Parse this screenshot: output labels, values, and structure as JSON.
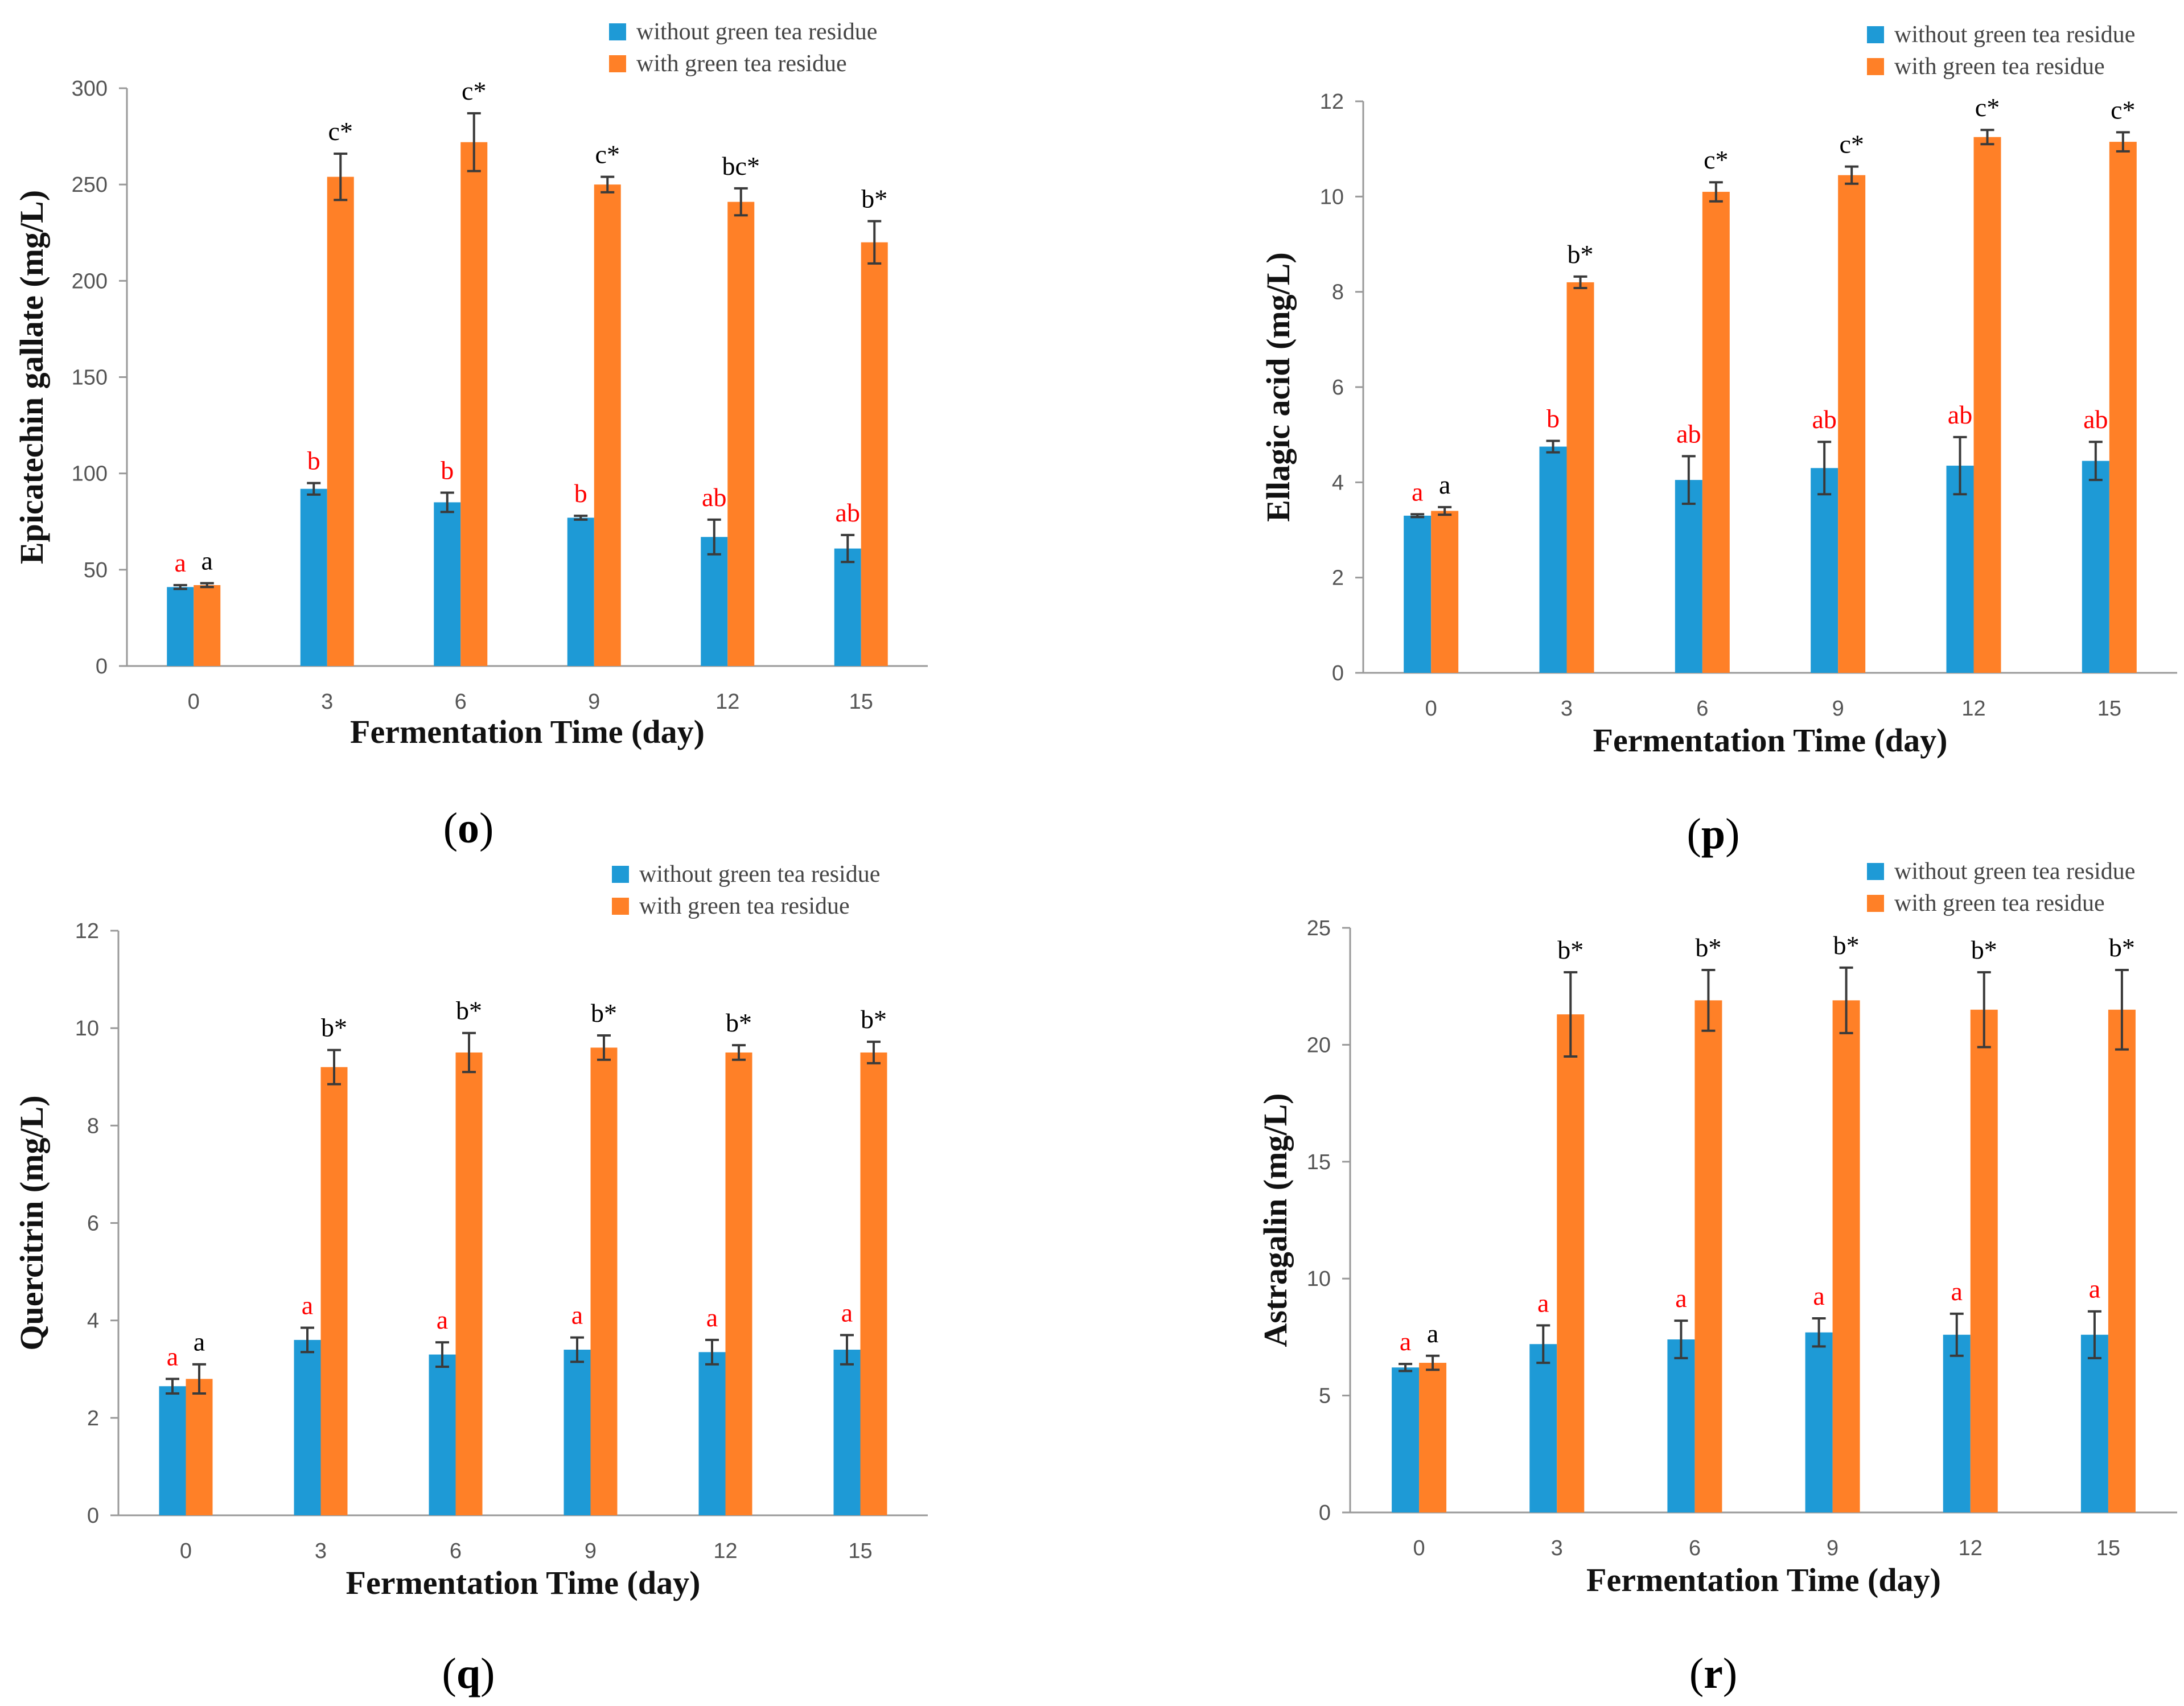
{
  "colors": {
    "without": "#1e9ad6",
    "with": "#ff8027",
    "sig_without": "#ff0000",
    "sig_with": "#000000",
    "axis": "#999999",
    "error_bar": "#3a3a3a"
  },
  "legend": {
    "without_label": "without green tea residue",
    "with_label": "with green tea residue"
  },
  "chart_data": [
    {
      "type": "bar",
      "panel_label": "o",
      "title": "",
      "xlabel": "Fermentation Time (day)",
      "ylabel": "Epicatechin gallate (mg/L)",
      "categories": [
        "0",
        "3",
        "6",
        "9",
        "12",
        "15"
      ],
      "ylim": [
        0,
        300
      ],
      "yticks": [
        0,
        50,
        100,
        150,
        200,
        250,
        300
      ],
      "ytick_labels": [
        "0",
        "50",
        "100",
        "150",
        "200",
        "250",
        "300"
      ],
      "series": [
        {
          "name": "without green tea residue",
          "values": [
            41,
            92,
            85,
            77,
            67,
            61
          ],
          "errors": [
            1,
            3,
            5,
            1,
            9,
            7
          ],
          "sig": [
            "a",
            "b",
            "b",
            "b",
            "ab",
            "ab"
          ]
        },
        {
          "name": "with green tea residue",
          "values": [
            42,
            254,
            272,
            250,
            241,
            220
          ],
          "errors": [
            1,
            12,
            15,
            4,
            7,
            11
          ],
          "sig": [
            "a",
            "c*",
            "c*",
            "c*",
            "bc*",
            "b*"
          ]
        }
      ]
    },
    {
      "type": "bar",
      "panel_label": "p",
      "title": "",
      "xlabel": "Fermentation Time (day)",
      "ylabel": "Ellagic acid (mg/L)",
      "categories": [
        "0",
        "3",
        "6",
        "9",
        "12",
        "15"
      ],
      "ylim": [
        0,
        12
      ],
      "yticks": [
        0,
        2,
        4,
        6,
        8,
        10,
        12
      ],
      "ytick_labels": [
        "0",
        "2",
        "4",
        "6",
        "8",
        "10",
        "12"
      ],
      "series": [
        {
          "name": "without green tea residue",
          "values": [
            3.3,
            4.75,
            4.05,
            4.3,
            4.35,
            4.45
          ],
          "errors": [
            0.03,
            0.12,
            0.5,
            0.55,
            0.6,
            0.4
          ],
          "sig": [
            "a",
            "b",
            "ab",
            "ab",
            "ab",
            "ab"
          ]
        },
        {
          "name": "with green tea residue",
          "values": [
            3.4,
            8.2,
            10.1,
            10.45,
            11.25,
            11.15
          ],
          "errors": [
            0.08,
            0.12,
            0.2,
            0.18,
            0.15,
            0.2
          ],
          "sig": [
            "a",
            "b*",
            "c*",
            "c*",
            "c*",
            "c*"
          ]
        }
      ]
    },
    {
      "type": "bar",
      "panel_label": "q",
      "title": "",
      "xlabel": "Fermentation Time (day)",
      "ylabel": "Quercitrin (mg/L)",
      "categories": [
        "0",
        "3",
        "6",
        "9",
        "12",
        "15"
      ],
      "ylim": [
        0,
        12
      ],
      "yticks": [
        0,
        2,
        4,
        6,
        8,
        10,
        12
      ],
      "ytick_labels": [
        "0",
        "2",
        "4",
        "6",
        "8",
        "10",
        "12"
      ],
      "series": [
        {
          "name": "without green tea residue",
          "values": [
            2.65,
            3.6,
            3.3,
            3.4,
            3.35,
            3.4
          ],
          "errors": [
            0.15,
            0.25,
            0.25,
            0.25,
            0.25,
            0.3
          ],
          "sig": [
            "a",
            "a",
            "a",
            "a",
            "a",
            "a"
          ]
        },
        {
          "name": "with green tea residue",
          "values": [
            2.8,
            9.2,
            9.5,
            9.6,
            9.5,
            9.5
          ],
          "errors": [
            0.3,
            0.35,
            0.4,
            0.25,
            0.15,
            0.22
          ],
          "sig": [
            "a",
            "b*",
            "b*",
            "b*",
            "b*",
            "b*"
          ]
        }
      ]
    },
    {
      "type": "bar",
      "panel_label": "r",
      "title": "",
      "xlabel": "Fermentation Time (day)",
      "ylabel": "Astragalin (mg/L)",
      "categories": [
        "0",
        "3",
        "6",
        "9",
        "12",
        "15"
      ],
      "ylim": [
        0,
        25
      ],
      "yticks": [
        0,
        5,
        10,
        15,
        20,
        25
      ],
      "ytick_labels": [
        "0",
        "5",
        "10",
        "15",
        "20",
        "25"
      ],
      "series": [
        {
          "name": "without green tea residue",
          "values": [
            6.2,
            7.2,
            7.4,
            7.7,
            7.6,
            7.6
          ],
          "errors": [
            0.15,
            0.8,
            0.8,
            0.6,
            0.9,
            1.0
          ],
          "sig": [
            "a",
            "a",
            "a",
            "a",
            "a",
            "a"
          ]
        },
        {
          "name": "with green tea residue",
          "values": [
            6.4,
            21.3,
            21.9,
            21.9,
            21.5,
            21.5
          ],
          "errors": [
            0.3,
            1.8,
            1.3,
            1.4,
            1.6,
            1.7
          ],
          "sig": [
            "a",
            "b*",
            "b*",
            "b*",
            "b*",
            "b*"
          ]
        }
      ]
    }
  ]
}
